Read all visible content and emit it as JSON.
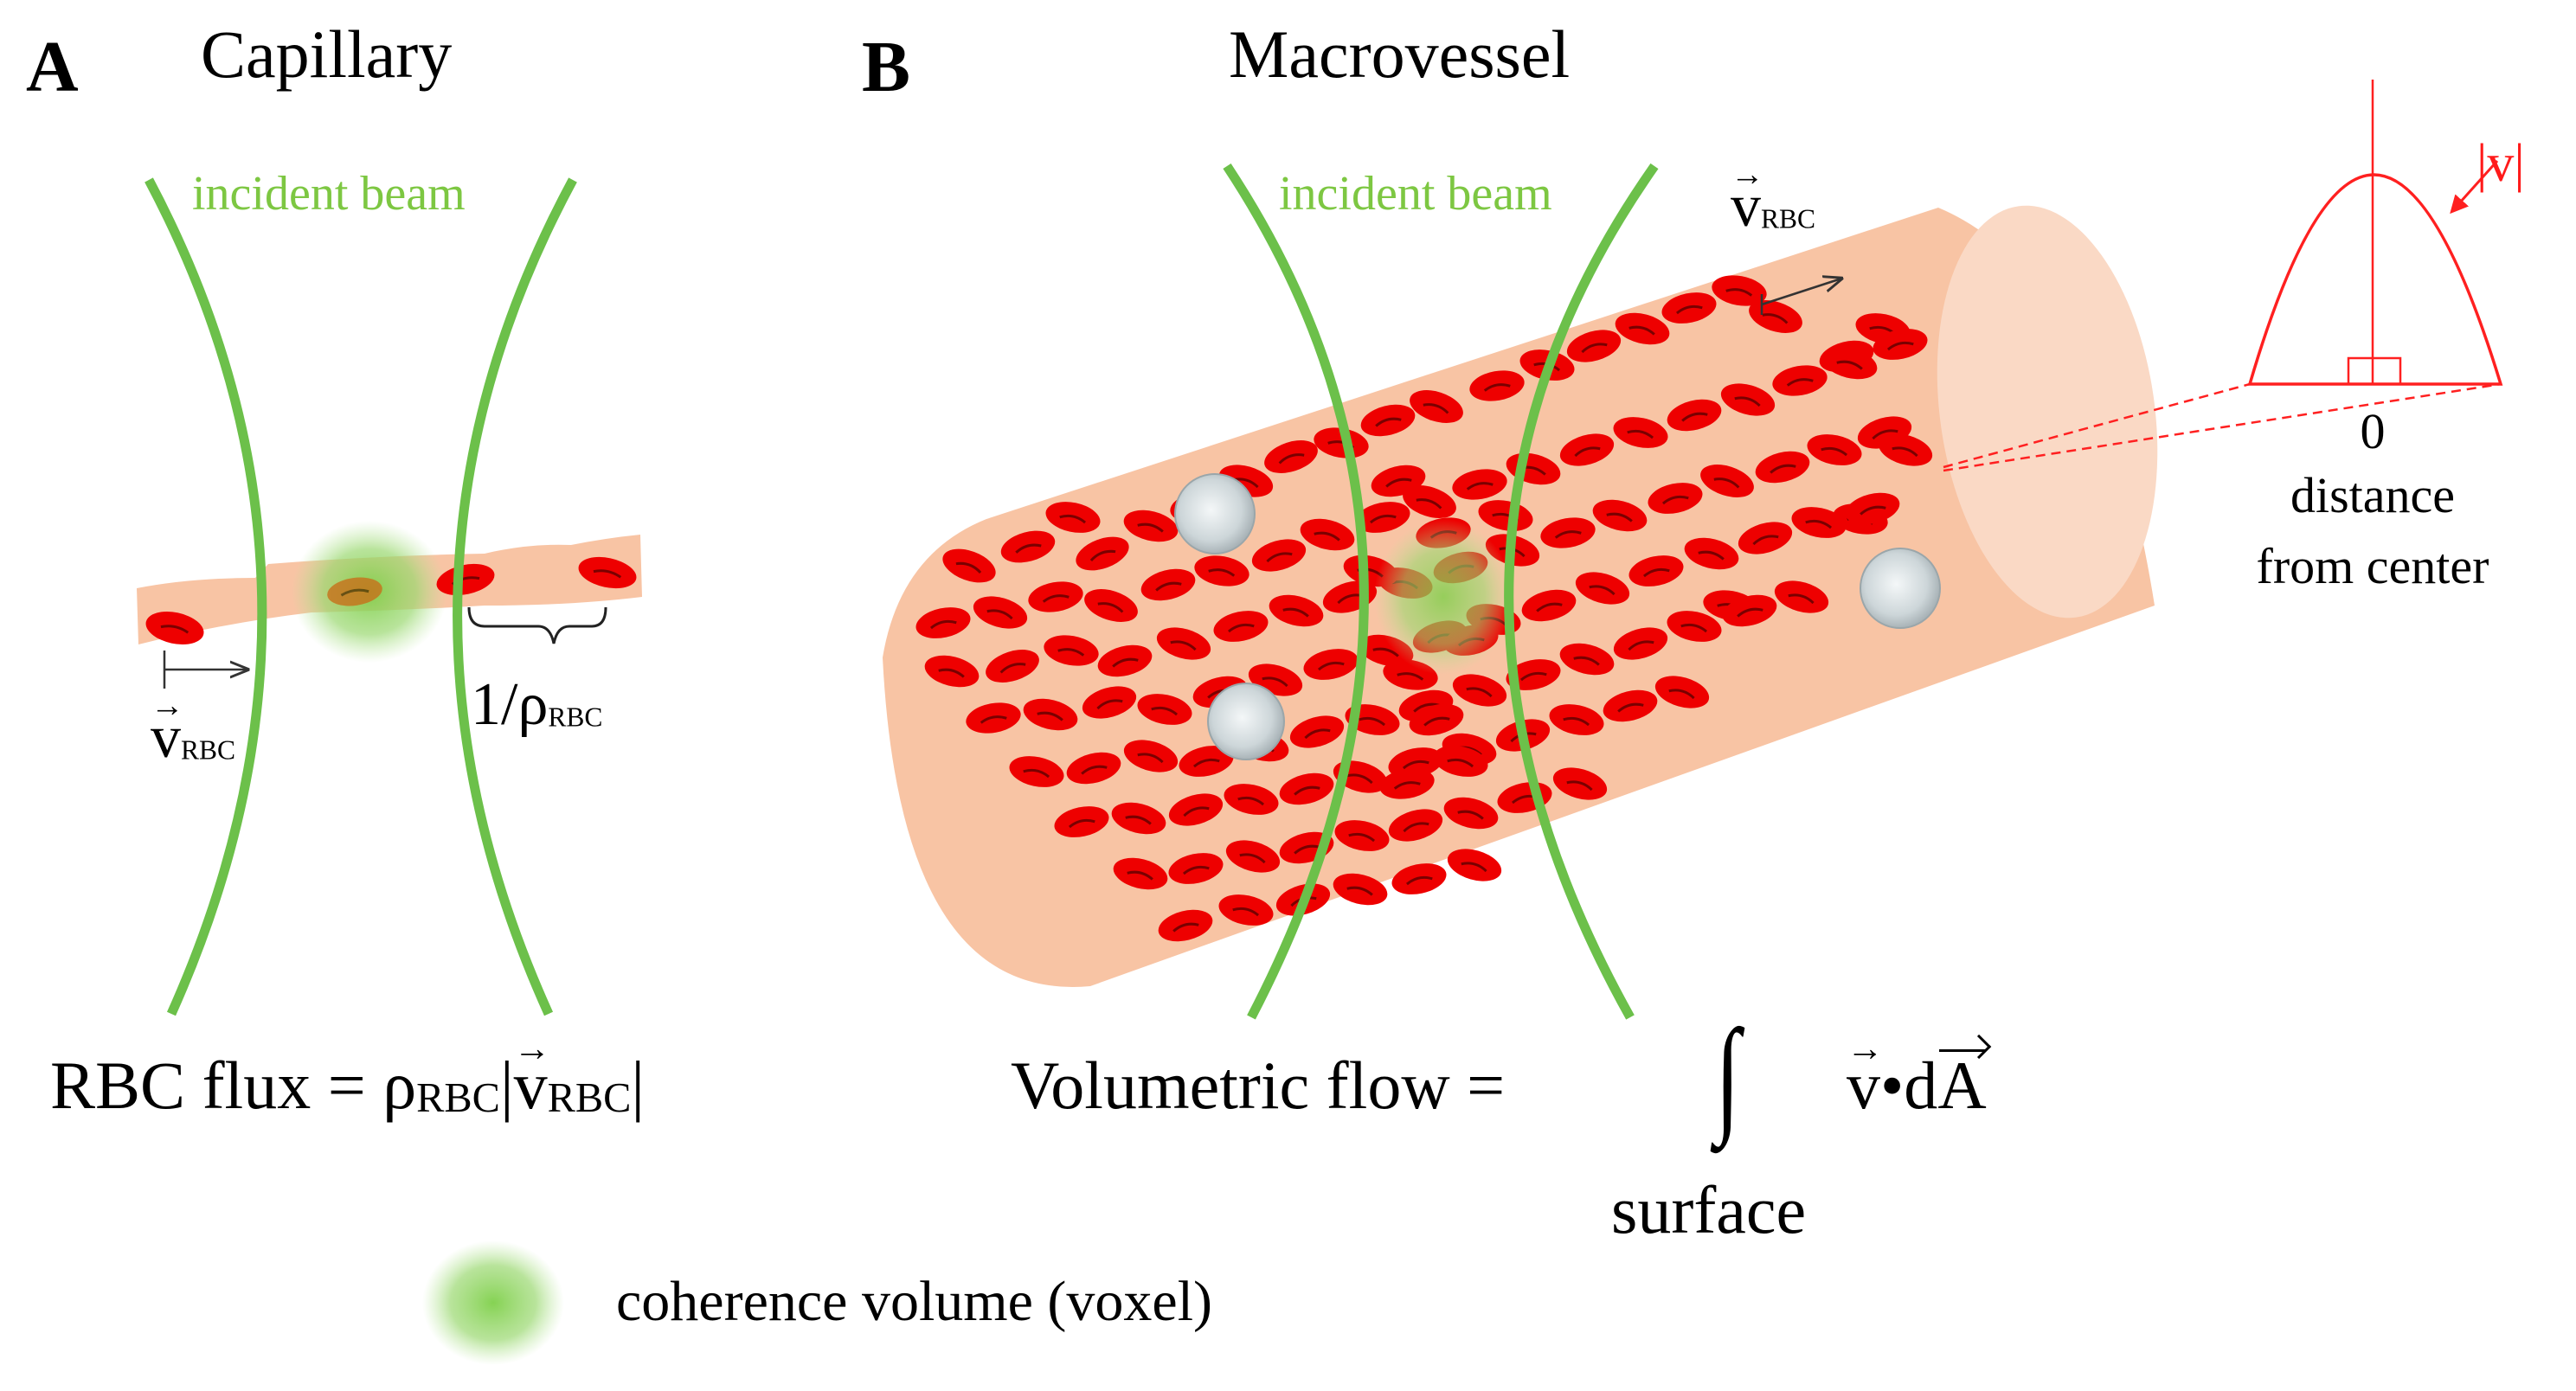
{
  "panel_a": {
    "letter": "A",
    "title": "Capillary",
    "beam_label": "incident beam",
    "velocity_symbol": "v",
    "velocity_subscript": "RBC",
    "spacing_label": "1/ρ",
    "spacing_subscript": "RBC",
    "flux_label": "RBC flux = ",
    "flux_rho": "ρ",
    "flux_rho_sub": "RBC",
    "flux_bar_left": "|",
    "flux_v": "v",
    "flux_v_sub": "RBC",
    "flux_bar_right": "|"
  },
  "panel_b": {
    "letter": "B",
    "title": "Macrovessel",
    "beam_label": "incident beam",
    "velocity_symbol": "v",
    "velocity_subscript": "RBC",
    "flow_label": "Volumetric flow = ",
    "integral_symbol": "∫",
    "integrand_v": "v",
    "integrand_dot": "•d",
    "integrand_A": "A",
    "integral_limit": "surface",
    "profile": {
      "magnitude_label": "|v|",
      "zero_label": "0",
      "axis_line1": "distance",
      "axis_line2": "from center"
    }
  },
  "legend": {
    "label": "coherence volume (voxel)"
  },
  "colors": {
    "beam": "#6cc04a",
    "vessel": "#f8c4a4",
    "vessel_end": "#fad9c5",
    "rbc": "#ee0000",
    "voxel": "#8cd65a",
    "profile": "#ff2020"
  }
}
